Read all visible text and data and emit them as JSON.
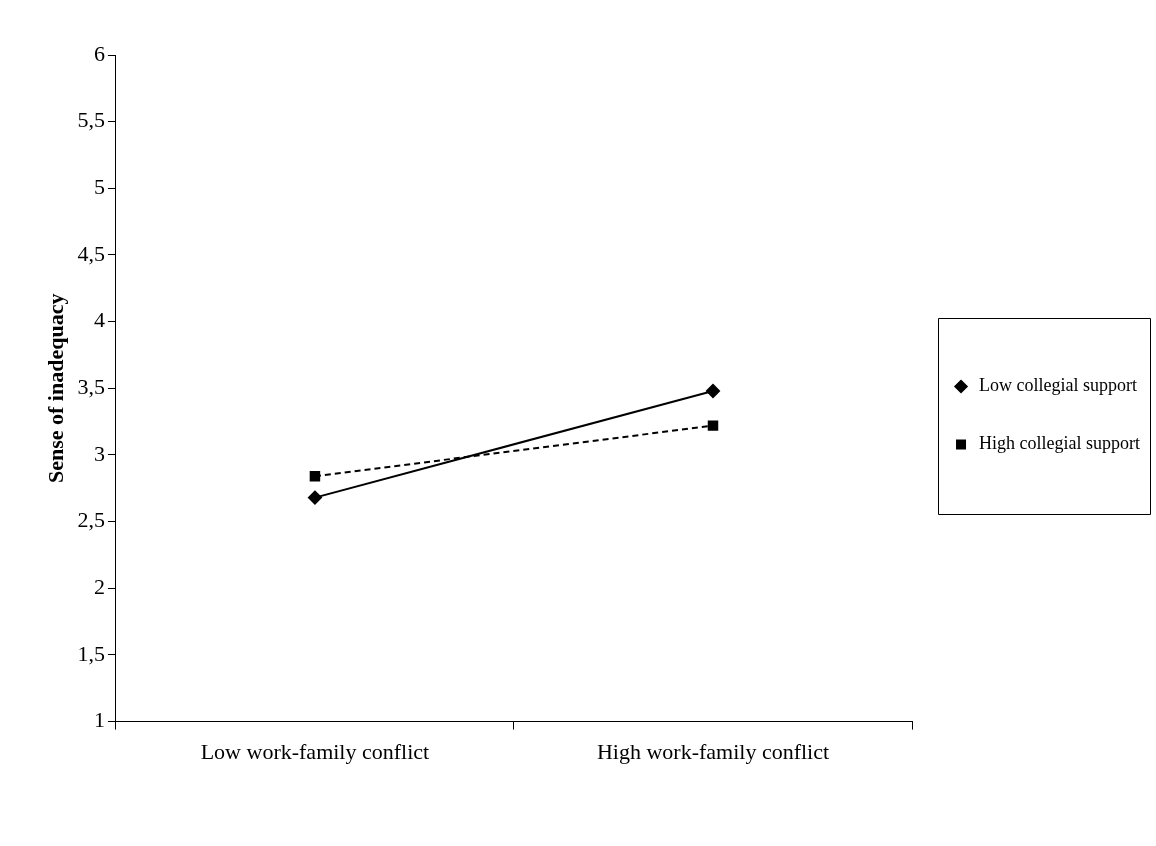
{
  "chart_data": {
    "type": "line",
    "ylabel": "Sense of inadequacy",
    "categories": [
      "Low work-family conflict",
      "High work-family conflict"
    ],
    "series": [
      {
        "name": "Low collegial support",
        "color": "#000000",
        "values": [
          2.68,
          3.48
        ],
        "marker": "diamond",
        "line_style": "solid"
      },
      {
        "name": "High collegial support",
        "color": "#000000",
        "values": [
          2.84,
          3.22
        ],
        "marker": "square",
        "line_style": "dashed"
      }
    ],
    "ylim": [
      1,
      6
    ],
    "yticks": [
      1,
      {
        "value": 1.5,
        "label": "1,5"
      },
      2,
      {
        "value": 2.5,
        "label": "2,5"
      },
      3,
      {
        "value": 3.5,
        "label": "3,5"
      },
      4,
      {
        "value": 4.5,
        "label": "4,5"
      },
      5,
      {
        "value": 5.5,
        "label": "5,5"
      },
      6
    ],
    "grid": false,
    "legend": "right"
  }
}
